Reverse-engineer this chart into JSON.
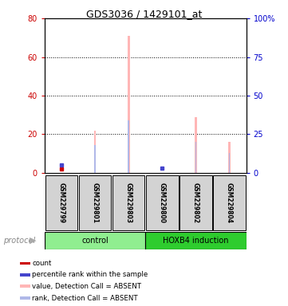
{
  "title": "GDS3036 / 1429101_at",
  "samples": [
    "GSM229799",
    "GSM229801",
    "GSM229803",
    "GSM229800",
    "GSM229802",
    "GSM229804"
  ],
  "value_bars": [
    0,
    22,
    71,
    0,
    29,
    16
  ],
  "rank_bars_right": [
    0,
    18,
    34,
    0,
    20,
    13
  ],
  "count_vals": [
    2,
    0,
    0,
    0,
    0,
    0
  ],
  "percentile_vals_right": [
    5,
    0,
    0,
    3,
    0,
    0
  ],
  "value_color": "#ffb6b6",
  "rank_color": "#b0b8e8",
  "count_color": "#cc0000",
  "percentile_color": "#4444cc",
  "ylim_left": [
    0,
    80
  ],
  "ylim_right": [
    0,
    100
  ],
  "yticks_left": [
    0,
    20,
    40,
    60,
    80
  ],
  "yticks_right": [
    0,
    25,
    50,
    75,
    100
  ],
  "left_axis_color": "#cc0000",
  "right_axis_color": "#0000cc",
  "legend_labels": [
    "count",
    "percentile rank within the sample",
    "value, Detection Call = ABSENT",
    "rank, Detection Call = ABSENT"
  ],
  "legend_colors": [
    "#cc0000",
    "#4444cc",
    "#ffb6b6",
    "#b0b8e8"
  ],
  "bg_color": "#ffffff",
  "sample_box_color": "#d3d3d3",
  "control_color": "#90ee90",
  "hoxb4_color": "#2ecc2e",
  "bar_linewidth": 3.5,
  "rank_linewidth": 1.8
}
